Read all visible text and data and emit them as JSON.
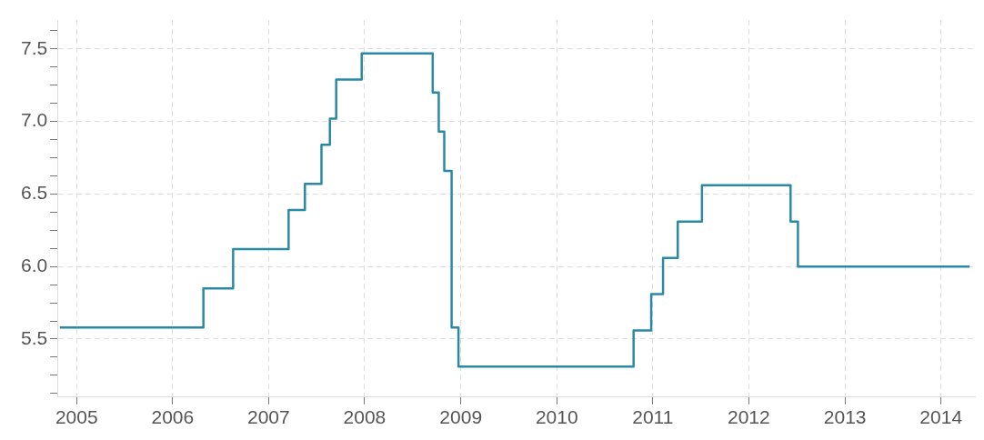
{
  "chart_data": {
    "type": "step",
    "x": [
      "2004-10-29",
      "2006-04-28",
      "2006-08-19",
      "2007-03-18",
      "2007-05-19",
      "2007-07-21",
      "2007-08-22",
      "2007-09-15",
      "2007-12-21",
      "2008-09-16",
      "2008-10-09",
      "2008-10-30",
      "2008-11-27",
      "2008-12-23",
      "2010-10-20",
      "2010-12-26",
      "2011-02-09",
      "2011-04-06",
      "2011-07-07",
      "2012-06-08",
      "2012-07-06",
      "2014-04-20"
    ],
    "series": [
      {
        "color": "#2a8aa5",
        "values": [
          5.58,
          5.85,
          6.12,
          6.39,
          6.57,
          6.84,
          7.02,
          7.29,
          7.47,
          7.2,
          6.93,
          6.66,
          5.58,
          5.31,
          5.56,
          5.81,
          6.06,
          6.31,
          6.56,
          6.31,
          6.0,
          6.0
        ]
      }
    ],
    "xlim": [
      "2004-10-20",
      "2014-05-10"
    ],
    "xticks": [
      "2005",
      "2006",
      "2007",
      "2008",
      "2009",
      "2010",
      "2011",
      "2012",
      "2013",
      "2014"
    ],
    "ylim": [
      5.1,
      7.7
    ],
    "yticks": [
      {
        "value": 5.125,
        "label": null
      },
      5.5,
      {
        "value": 5.25,
        "label": null
      },
      {
        "value": 5.375,
        "label": null
      },
      {
        "value": 5.625,
        "label": null
      },
      {
        "value": 5.75,
        "label": null
      },
      {
        "value": 5.875,
        "label": null
      },
      "6.0",
      {
        "value": 6.125,
        "label": null
      },
      {
        "value": 6.25,
        "label": null
      },
      {
        "value": 6.375,
        "label": null
      },
      6.5,
      {
        "value": 6.625,
        "label": null
      },
      {
        "value": 6.75,
        "label": null
      },
      {
        "value": 6.875,
        "label": null
      },
      "7.0",
      {
        "value": 7.125,
        "label": null
      },
      {
        "value": 7.25,
        "label": null
      },
      {
        "value": 7.375,
        "label": null
      },
      7.5,
      {
        "value": 7.625,
        "label": null
      }
    ],
    "grid": true,
    "legend": false
  }
}
